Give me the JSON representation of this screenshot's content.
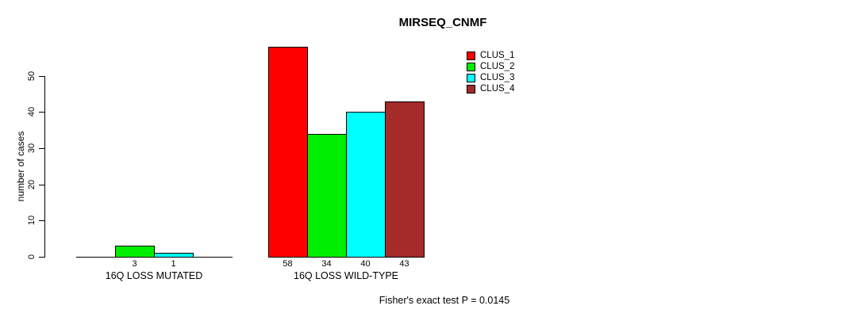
{
  "chart_data": {
    "type": "bar",
    "title": "MIRSEQ_CNMF",
    "ylabel": "number of cases",
    "ylim": [
      0,
      58
    ],
    "yticks": [
      0,
      10,
      20,
      30,
      40,
      50
    ],
    "grid": false,
    "legend_position": "top-right",
    "bar_value_labels": true,
    "categories": [
      "16Q LOSS MUTATED",
      "16Q LOSS WILD-TYPE"
    ],
    "series": [
      {
        "name": "CLUS_1",
        "color": "#FF0000",
        "values": [
          0,
          58
        ]
      },
      {
        "name": "CLUS_2",
        "color": "#00EE00",
        "values": [
          3,
          34
        ]
      },
      {
        "name": "CLUS_3",
        "color": "#00FFFF",
        "values": [
          1,
          40
        ]
      },
      {
        "name": "CLUS_4",
        "color": "#A52A2A",
        "values": [
          0,
          43
        ]
      }
    ],
    "footer": "Fisher's exact test P = 0.0145"
  }
}
